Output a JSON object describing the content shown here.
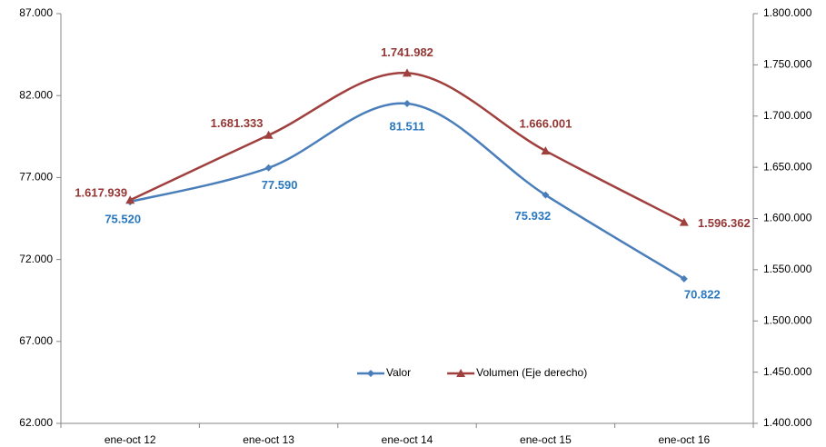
{
  "chart_data": {
    "type": "line",
    "categories": [
      "ene-oct 12",
      "ene-oct 13",
      "ene-oct 14",
      "ene-oct 15",
      "ene-oct 16"
    ],
    "ylim": [
      62000,
      87000
    ],
    "yticks": [
      {
        "value": 62000,
        "label": "62.000"
      },
      {
        "value": 67000,
        "label": "67.000"
      },
      {
        "value": 72000,
        "label": "72.000"
      },
      {
        "value": 77000,
        "label": "77.000"
      },
      {
        "value": 82000,
        "label": "82.000"
      },
      {
        "value": 87000,
        "label": "87.000"
      }
    ],
    "y2lim": [
      1400000,
      1800000
    ],
    "y2ticks": [
      {
        "value": 1400000,
        "label": "1.400.000"
      },
      {
        "value": 1450000,
        "label": "1.450.000"
      },
      {
        "value": 1500000,
        "label": "1.500.000"
      },
      {
        "value": 1550000,
        "label": "1.550.000"
      },
      {
        "value": 1600000,
        "label": "1.600.000"
      },
      {
        "value": 1650000,
        "label": "1.650.000"
      },
      {
        "value": 1700000,
        "label": "1.700.000"
      },
      {
        "value": 1750000,
        "label": "1.750.000"
      },
      {
        "value": 1800000,
        "label": "1.800.000"
      }
    ],
    "legend": "bottom",
    "series": [
      {
        "name": "Valor",
        "color": "#4a7ebb",
        "label_color": "#2a78c0",
        "marker": "diamond",
        "values": [
          75520,
          77590,
          81511,
          75932,
          70822
        ],
        "value_labels": [
          "75.520",
          "77.590",
          "81.511",
          "75.932",
          "70.822"
        ]
      },
      {
        "name": "Volumen (Eje derecho)",
        "color": "#a0403e",
        "label_color": "#953735",
        "marker": "triangle",
        "axis": "y2",
        "values": [
          1617939,
          1681333,
          1741982,
          1666001,
          1596362
        ],
        "value_labels": [
          "1.617.939",
          "1.681.333",
          "1.741.982",
          "1.666.001",
          "1.596.362"
        ]
      }
    ]
  }
}
